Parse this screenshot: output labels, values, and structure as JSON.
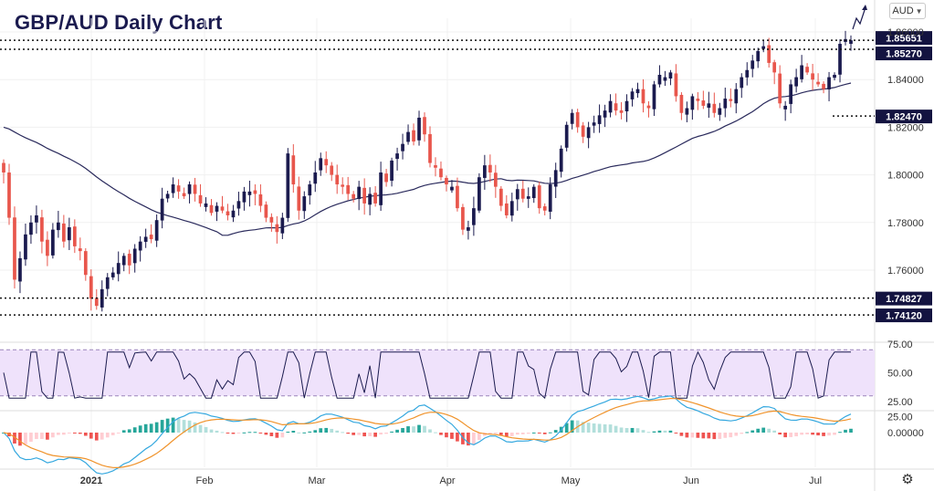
{
  "title": "GBP/AUD Daily Chart",
  "currency_select": {
    "value": "AUD"
  },
  "colors": {
    "bull": "#1b1b4f",
    "bear": "#e8564c",
    "ma_line": "#2a2a5c",
    "rsi_band": "#efe2fb",
    "rsi_line": "#1b1b4f",
    "macd_line": "#35a8df",
    "signal_line": "#f0932b",
    "hist_pos_strong": "#26a69a",
    "hist_pos_weak": "#b2dfdb",
    "hist_neg_strong": "#ef5350",
    "hist_neg_weak": "#ffcdd2",
    "price_box": "#131340"
  },
  "icons": {
    "settings": "gear-icon",
    "forecast": "arrow-up-right-icon",
    "dropdown": "chevron-down-icon"
  },
  "chart_data": [
    {
      "type": "candlestick",
      "title": "GBP/AUD Daily Chart",
      "x_labels": [
        "2021",
        "Feb",
        "Mar",
        "Apr",
        "May",
        "Jun",
        "Jul"
      ],
      "y_ticks": [
        "1.86000",
        "1.84000",
        "1.82000",
        "1.80000",
        "1.78000",
        "1.76000"
      ],
      "ylim": [
        1.735,
        1.865
      ],
      "price_levels": [
        "1.85651",
        "1.85270",
        "1.82470",
        "1.74827",
        "1.74120"
      ],
      "closes": [
        1.801,
        1.782,
        1.756,
        1.765,
        1.775,
        1.78,
        1.783,
        1.772,
        1.766,
        1.777,
        1.78,
        1.772,
        1.778,
        1.77,
        1.768,
        1.758,
        1.748,
        1.745,
        1.752,
        1.757,
        1.759,
        1.763,
        1.766,
        1.762,
        1.769,
        1.772,
        1.774,
        1.773,
        1.781,
        1.79,
        1.792,
        1.796,
        1.793,
        1.791,
        1.796,
        1.792,
        1.788,
        1.788,
        1.784,
        1.787,
        1.785,
        1.783,
        1.785,
        1.789,
        1.793,
        1.793,
        1.792,
        1.787,
        1.782,
        1.78,
        1.776,
        1.782,
        1.809,
        1.796,
        1.785,
        1.791,
        1.796,
        1.801,
        1.807,
        1.804,
        1.8,
        1.796,
        1.795,
        1.792,
        1.79,
        1.795,
        1.788,
        1.792,
        1.788,
        1.801,
        1.797,
        1.806,
        1.809,
        1.813,
        1.818,
        1.814,
        1.824,
        1.817,
        1.805,
        1.803,
        1.799,
        1.796,
        1.795,
        1.786,
        1.777,
        1.778,
        1.786,
        1.799,
        1.804,
        1.801,
        1.795,
        1.787,
        1.783,
        1.789,
        1.794,
        1.79,
        1.791,
        1.795,
        1.786,
        1.785,
        1.796,
        1.802,
        1.811,
        1.821,
        1.826,
        1.82,
        1.816,
        1.82,
        1.822,
        1.825,
        1.827,
        1.831,
        1.827,
        1.826,
        1.831,
        1.835,
        1.836,
        1.83,
        1.828,
        1.838,
        1.842,
        1.841,
        1.843,
        1.833,
        1.826,
        1.828,
        1.833,
        1.831,
        1.829,
        1.83,
        1.826,
        1.828,
        1.832,
        1.831,
        1.836,
        1.841,
        1.844,
        1.848,
        1.852,
        1.854,
        1.847,
        1.843,
        1.83,
        1.829,
        1.838,
        1.841,
        1.846,
        1.843,
        1.84,
        1.838,
        1.836,
        1.841,
        1.842,
        1.855,
        1.857,
        1.8565
      ],
      "ma_period_levels": "moving average drawn under price",
      "annotation": "forecast arrow up"
    },
    {
      "type": "line",
      "name": "RSI",
      "y_ticks": [
        "75.00",
        "50.00",
        "25.00"
      ],
      "ylim": [
        25,
        75
      ],
      "band": [
        30,
        70
      ]
    },
    {
      "type": "line",
      "name": "MACD",
      "y_ticks": [
        "25.00",
        "0.00000"
      ]
    }
  ]
}
